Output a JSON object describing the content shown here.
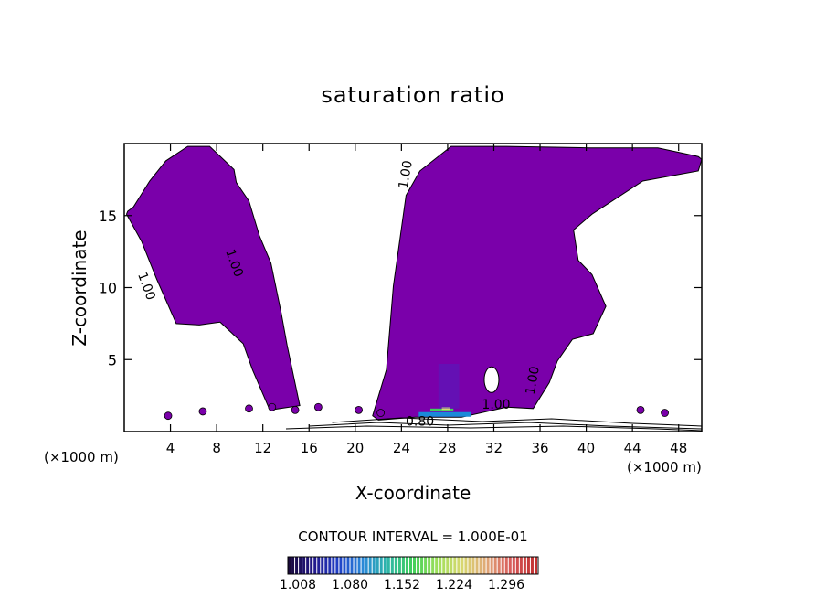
{
  "chart_data": {
    "type": "heatmap",
    "title": "saturation ratio",
    "xlabel": "X-coordinate",
    "ylabel": "Z-coordinate",
    "x_unit_left": "(×1000 m)",
    "x_unit_right": "(×1000 m)",
    "xlim": [
      0,
      50
    ],
    "ylim": [
      0,
      20
    ],
    "x_ticks": [
      "4",
      "8",
      "12",
      "16",
      "20",
      "24",
      "28",
      "32",
      "36",
      "40",
      "44",
      "48"
    ],
    "y_ticks": [
      "5",
      "10",
      "15"
    ],
    "contour_labels": [
      "1.00",
      "1.00",
      "1.00",
      "1.00",
      "1.00",
      "0.80"
    ],
    "contour_interval_text": "CONTOUR INTERVAL = 1.000E-01",
    "colorbar": {
      "tick_labels": [
        "1.008",
        "1.080",
        "1.152",
        "1.224",
        "1.296"
      ],
      "colors": [
        "#1a0a3a",
        "#22178a",
        "#2040c8",
        "#2a8ad8",
        "#2fb7a8",
        "#3fcf5a",
        "#9ee05a",
        "#d8d870",
        "#e0a878",
        "#d85a5a",
        "#c03030"
      ]
    },
    "fill_color": "#7a00aa",
    "series": [
      {
        "name": "",
        "regions": [
          {
            "x": [
              0.3,
              0.8,
              2.2,
              3.6,
              5.5,
              7.4,
              9.5,
              9.7,
              10.8,
              11.7,
              12.7,
              13.6,
              14.1,
              15.2,
              12.6,
              11.1,
              10.3,
              8.3,
              6.5,
              4.5,
              2.8,
              1.5,
              0.2
            ],
            "y": [
              15.3,
              15.6,
              17.4,
              18.8,
              19.8,
              19.8,
              18.2,
              17.3,
              16.0,
              13.6,
              11.7,
              8.2,
              6.0,
              1.8,
              1.5,
              4.3,
              6.1,
              7.6,
              7.4,
              7.5,
              10.6,
              13.2,
              15.1
            ]
          },
          {
            "x": [
              21.5,
              22.7,
              23.3,
              24.4,
              25.6,
              28.3,
              33.1,
              40.2,
              44.2,
              45.0,
              46.2,
              49.7,
              50.0,
              49.7,
              44.9,
              40.5,
              38.9,
              39.3,
              40.5,
              41.7,
              40.6,
              38.8,
              37.5,
              36.8,
              35.4,
              33.1,
              29.2,
              25.2,
              22.0,
              21.5
            ],
            "y": [
              1.1,
              4.3,
              10.1,
              16.4,
              18.1,
              19.8,
              19.8,
              19.7,
              19.7,
              19.7,
              19.7,
              19.1,
              18.9,
              18.1,
              17.4,
              15.1,
              14.0,
              11.9,
              10.9,
              8.7,
              6.8,
              6.4,
              4.9,
              3.4,
              1.6,
              1.7,
              1.0,
              1.0,
              0.8,
              1.1
            ]
          }
        ]
      }
    ]
  }
}
